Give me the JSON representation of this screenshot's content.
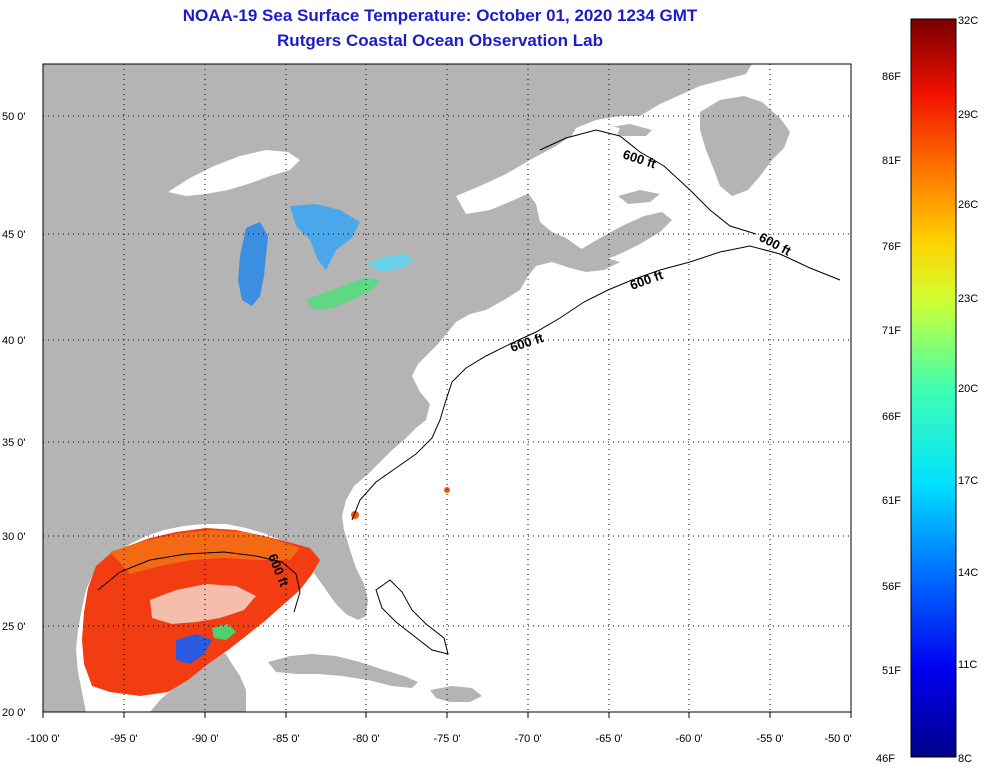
{
  "header": {
    "title_line1": "NOAA-19 Sea Surface Temperature:  October 01, 2020 1234 GMT",
    "title_line2": "Rutgers Coastal Ocean Observation Lab"
  },
  "map": {
    "lon_labels": [
      "-100 0'",
      "-95 0'",
      "-90 0'",
      "-85 0'",
      "-80 0'",
      "-75 0'",
      "-70 0'",
      "-65 0'",
      "-60 0'",
      "-55 0'",
      "-50 0'"
    ],
    "lat_labels": [
      "50 0'",
      "45 0'",
      "40 0'",
      "35 0'",
      "30 0'",
      "25 0'",
      "20 0'"
    ],
    "contour_labels": [
      "600 ft",
      "600 ft",
      "600 ft",
      "600 ft",
      "600 ft"
    ],
    "colors": {
      "land": "#b4b4b4",
      "ocean": "#ffffff",
      "gulf_warm": "#f03a10",
      "gulf_hot": "#f06a10",
      "lake_cool": "#2aa8e8",
      "lake_green": "#4ee070"
    }
  },
  "colorbar": {
    "celsius_labels": [
      "32C",
      "29C",
      "26C",
      "23C",
      "20C",
      "17C",
      "14C",
      "11C",
      "8C"
    ],
    "fahrenheit_labels": [
      "86F",
      "81F",
      "76F",
      "71F",
      "66F",
      "61F",
      "56F",
      "51F",
      "46F"
    ]
  }
}
